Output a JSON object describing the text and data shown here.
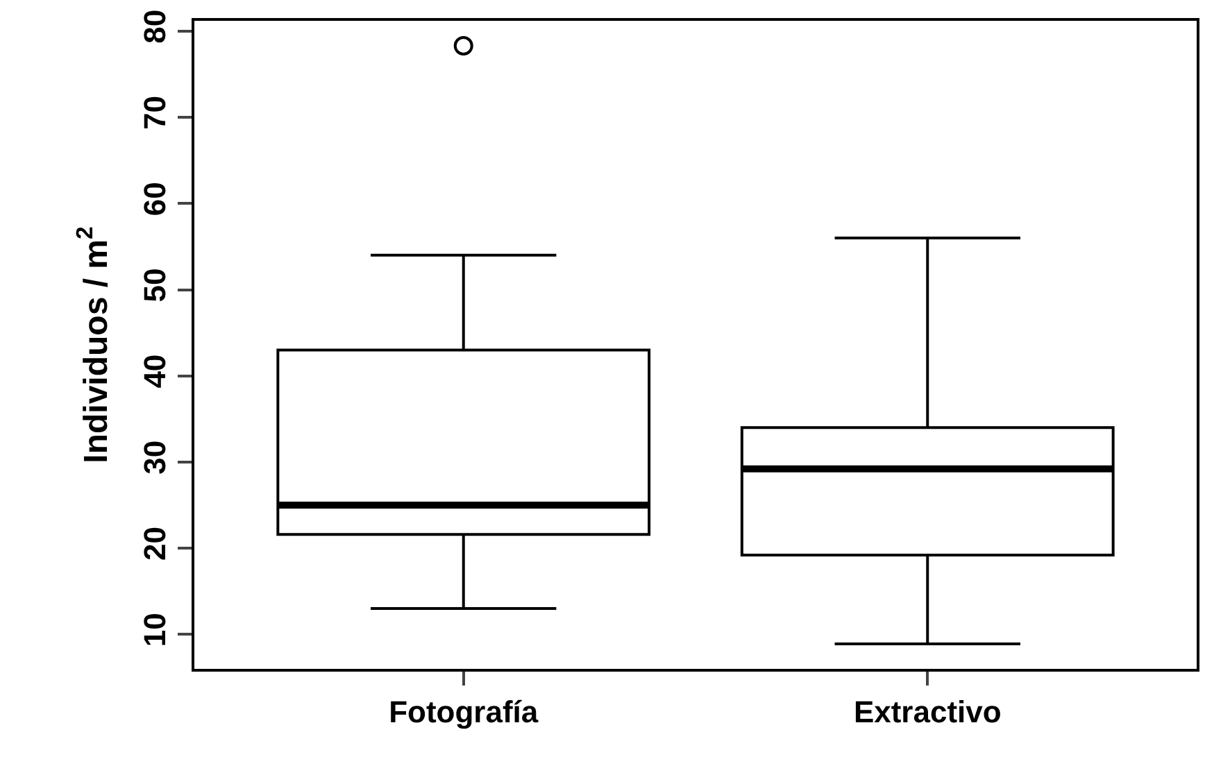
{
  "chart_data": {
    "type": "box",
    "ylabel": "Individuos / m$^{2}$",
    "categories": [
      "Fotografía",
      "Extractivo"
    ],
    "boxes": [
      {
        "low": 13,
        "q1": 21.6,
        "median": 25,
        "q3": 43,
        "high": 54,
        "outliers": [
          78.3
        ]
      },
      {
        "low": 8.9,
        "q1": 19.2,
        "median": 29.2,
        "q3": 34,
        "high": 56
      }
    ],
    "ylim": [
      6,
      81.2
    ],
    "yticks": [
      10,
      20,
      30,
      40,
      50,
      60,
      70,
      80
    ]
  }
}
